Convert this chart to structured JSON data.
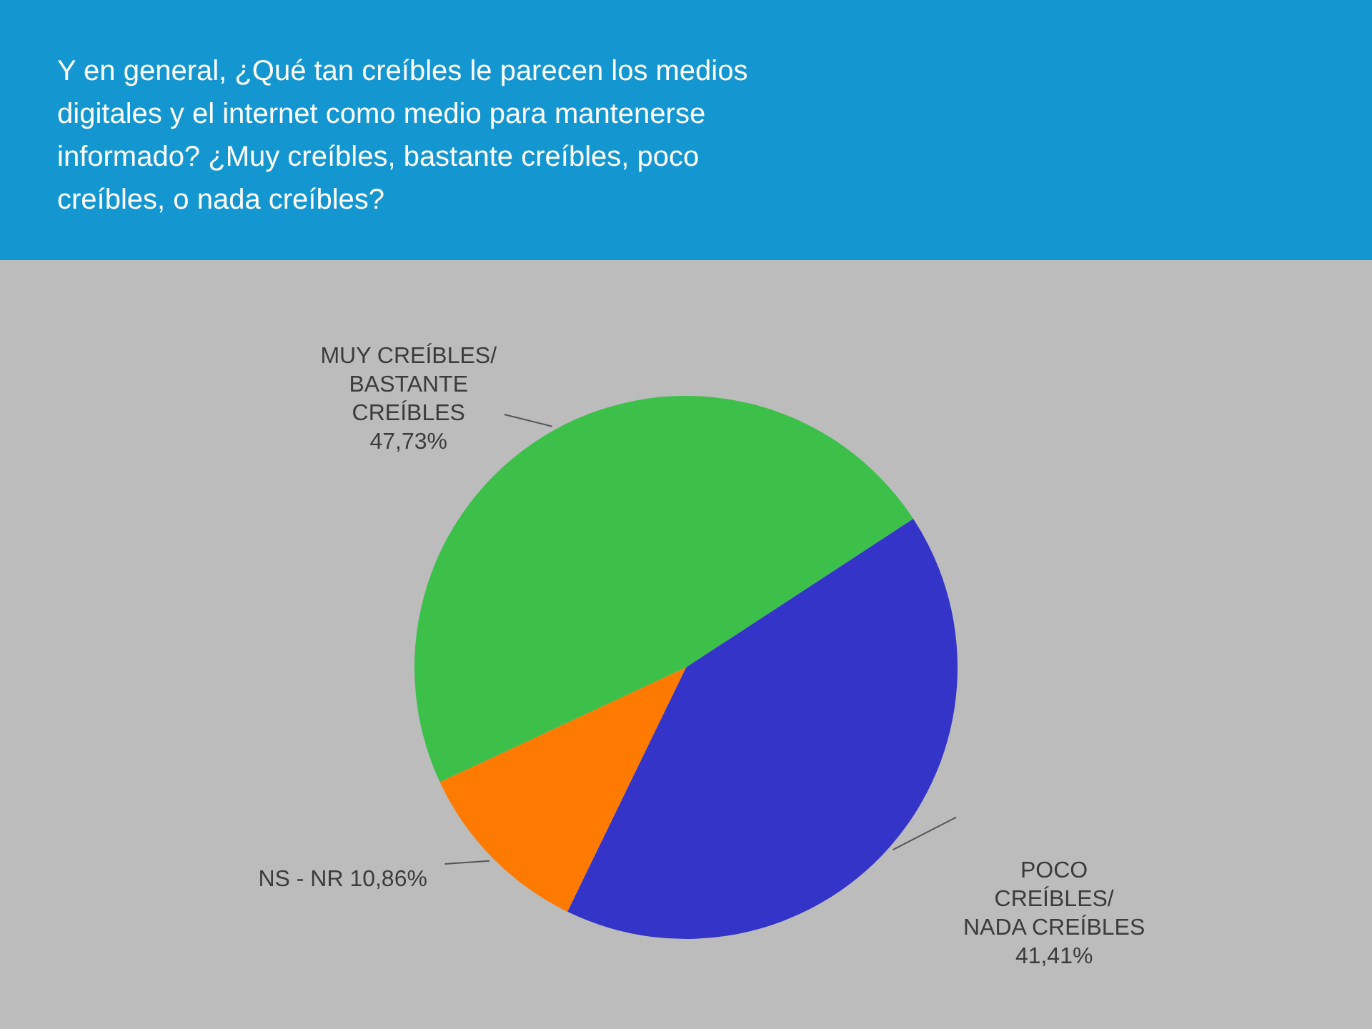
{
  "chart_data": {
    "type": "pie",
    "title": "Y en general, ¿Qué tan creíbles le parecen los medios digitales y el internet como medio para mantenerse informado? ¿Muy creíbles, bastante creíbles, poco creíbles, o nada creíbles?",
    "categories": [
      "MUY CREÍBLES/ BASTANTE CREÍBLES",
      "POCO CREÍBLES/ NADA CREÍBLES",
      "NS - NR"
    ],
    "values": [
      47.73,
      41.41,
      10.86
    ],
    "colors": [
      "#3cc04a",
      "#3434c8",
      "#ff7a00"
    ],
    "value_labels": [
      "47,73%",
      "41,41%",
      "10,86%"
    ]
  }
}
